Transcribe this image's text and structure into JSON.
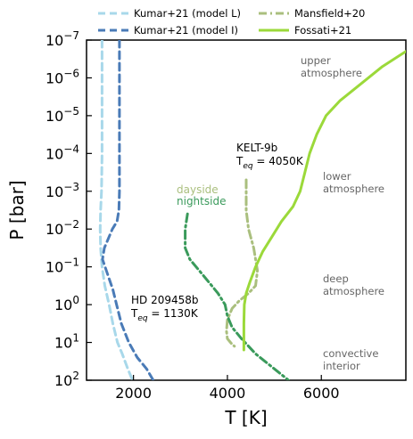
{
  "chart_data": {
    "type": "line",
    "xlabel": "T [K]",
    "ylabel": "P [bar]",
    "xlim": [
      1000,
      7800
    ],
    "ylim_log10": [
      2,
      -7
    ],
    "x_scale": "linear",
    "y_scale": "log",
    "y_inverted": true,
    "x_ticks": [
      2000,
      4000,
      6000
    ],
    "x_tick_labels": [
      "2000",
      "4000",
      "6000"
    ],
    "y_ticks_log10": [
      -7,
      -6,
      -5,
      -4,
      -3,
      -2,
      -1,
      0,
      1,
      2
    ],
    "y_tick_labels": [
      {
        "base": "10",
        "exp": "−7"
      },
      {
        "base": "10",
        "exp": "−6"
      },
      {
        "base": "10",
        "exp": "−5"
      },
      {
        "base": "10",
        "exp": "−4"
      },
      {
        "base": "10",
        "exp": "−3"
      },
      {
        "base": "10",
        "exp": "−2"
      },
      {
        "base": "10",
        "exp": "−1"
      },
      {
        "base": "10",
        "exp": "0"
      },
      {
        "base": "10",
        "exp": "1"
      },
      {
        "base": "10",
        "exp": "2"
      }
    ],
    "legend_placement": "top",
    "legend": [
      {
        "label": "Kumar+21 (model L)",
        "color": "#a8d8ea",
        "style": "dashed"
      },
      {
        "label": "Kumar+21 (model I)",
        "color": "#4a7bb7",
        "style": "dashed"
      },
      {
        "label": "Mansfield+20",
        "color": "#aabf7e",
        "style": "dashdot"
      },
      {
        "label": "Fossati+21",
        "color": "#9bd93a",
        "style": "solid"
      }
    ],
    "series": [
      {
        "name": "Kumar+21 (model L)",
        "color": "#a8d8ea",
        "style": "dashed",
        "x": [
          1330,
          1330,
          1320,
          1300,
          1290,
          1300,
          1330,
          1390,
          1480,
          1560,
          1660,
          1760,
          1880,
          1980
        ],
        "logP": [
          -7,
          -4,
          -3,
          -2.5,
          -2,
          -1.5,
          -1,
          -0.5,
          0,
          0.5,
          1,
          1.3,
          1.7,
          2
        ]
      },
      {
        "name": "Kumar+21 (model I)",
        "color": "#4a7bb7",
        "style": "dashed",
        "x": [
          1700,
          1700,
          1700,
          1690,
          1650,
          1550,
          1380,
          1340,
          1450,
          1560,
          1640,
          1740,
          1900,
          2080,
          2280,
          2420
        ],
        "logP": [
          -7,
          -5,
          -3,
          -2.5,
          -2.2,
          -2,
          -1.5,
          -1.2,
          -0.8,
          -0.4,
          0,
          0.5,
          1,
          1.4,
          1.7,
          2
        ]
      },
      {
        "name": "Mansfield+20 (dayside)",
        "color": "#aabf7e",
        "style": "dashdot",
        "x": [
          4400,
          4400,
          4450,
          4560,
          4640,
          4600,
          4450,
          4250,
          4100,
          4000,
          3980,
          4000,
          4100,
          4150
        ],
        "logP": [
          -3.3,
          -2.5,
          -2,
          -1.5,
          -0.9,
          -0.5,
          -0.3,
          -0.1,
          0.1,
          0.4,
          0.7,
          0.9,
          1.05,
          1.1
        ]
      },
      {
        "name": "Mansfield+20 (nightside)",
        "color": "#3a9a5b",
        "style": "dashdot",
        "x": [
          3150,
          3100,
          3100,
          3200,
          3400,
          3600,
          3800,
          3950,
          4000,
          4100,
          4300,
          4600,
          4900,
          5150,
          5300
        ],
        "logP": [
          -2.4,
          -2,
          -1.5,
          -1.2,
          -0.9,
          -0.6,
          -0.3,
          0,
          0.3,
          0.6,
          0.9,
          1.3,
          1.6,
          1.85,
          2
        ]
      },
      {
        "name": "Fossati+21",
        "color": "#9bd93a",
        "style": "solid",
        "x": [
          4350,
          4350,
          4360,
          4400,
          4480,
          4600,
          4750,
          4950,
          5150,
          5400,
          5550,
          5650,
          5750,
          5900,
          6100,
          6400,
          6800,
          7300,
          7800
        ],
        "logP": [
          1.2,
          0.5,
          0,
          -0.3,
          -0.6,
          -1,
          -1.4,
          -1.8,
          -2.2,
          -2.6,
          -3.0,
          -3.5,
          -4,
          -4.5,
          -5,
          -5.4,
          -5.8,
          -6.3,
          -6.7
        ]
      }
    ],
    "annotations": {
      "regions": [
        {
          "id": "upper",
          "lines": [
            "upper",
            "atmosphere"
          ]
        },
        {
          "id": "lower",
          "lines": [
            "lower",
            "atmosphere"
          ]
        },
        {
          "id": "deep",
          "lines": [
            "deep",
            "atmosphere"
          ]
        },
        {
          "id": "convective",
          "lines": [
            "convective",
            "interior"
          ]
        }
      ],
      "kelt": {
        "name": "KELT-9b",
        "teq_prefix": "T",
        "teq_sub": "eq",
        "teq_value": " = 4050K"
      },
      "hd": {
        "name": "HD 209458b",
        "teq_prefix": "T",
        "teq_sub": "eq",
        "teq_value": " = 1130K"
      },
      "dayside": {
        "text": "dayside",
        "color": "#aabf7e"
      },
      "nightside": {
        "text": "nightside",
        "color": "#3a9a5b"
      }
    }
  }
}
